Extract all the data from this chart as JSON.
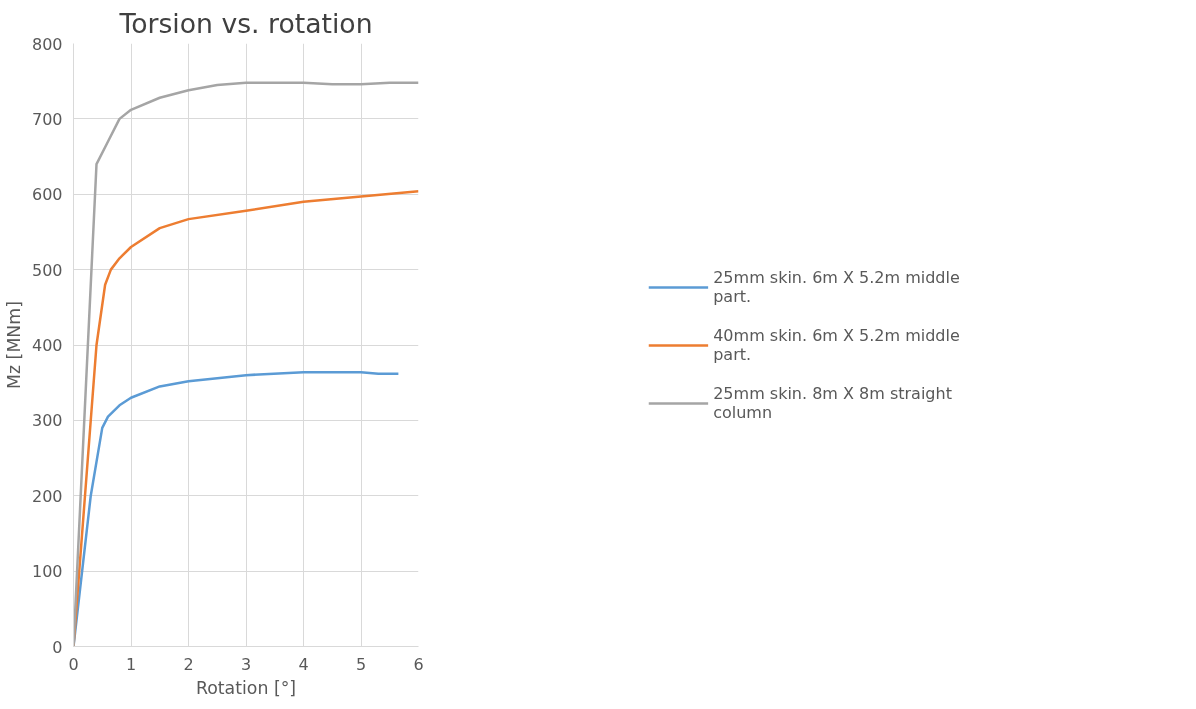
{
  "chart_data": {
    "type": "line",
    "title": "Torsion vs. rotation",
    "xlabel": "Rotation [°]",
    "ylabel": "Mz [MNm]",
    "xlim": [
      0,
      6
    ],
    "xticks": [
      0,
      1,
      2,
      3,
      4,
      5,
      6
    ],
    "ylim": [
      0,
      800
    ],
    "yticks": [
      0,
      100,
      200,
      300,
      400,
      500,
      600,
      700,
      800
    ],
    "grid": true,
    "legend": "right",
    "marker": "none",
    "line_style": "solid",
    "series": [
      {
        "name": "25mm skin. 6m X 5.2m middle part.",
        "color": "#5b9bd5",
        "x": [
          0,
          0.3,
          0.5,
          0.6,
          0.8,
          1,
          1.5,
          2,
          3,
          4,
          5,
          5.3,
          5.65
        ],
        "values": [
          0,
          200,
          290,
          305,
          320,
          330,
          345,
          352,
          360,
          364,
          364,
          362,
          362
        ]
      },
      {
        "name": "40mm skin. 6m X 5.2m middle part.",
        "color": "#ed7d31",
        "x": [
          0,
          0.4,
          0.55,
          0.65,
          0.8,
          1,
          1.5,
          2,
          3,
          4,
          5,
          6
        ],
        "values": [
          0,
          400,
          480,
          500,
          515,
          530,
          555,
          567,
          578,
          590,
          597,
          604
        ]
      },
      {
        "name": "25mm skin. 8m X 8m straight column",
        "color": "#a5a5a5",
        "x": [
          0,
          0.4,
          0.6,
          0.8,
          1,
          1.5,
          2,
          2.5,
          3,
          4,
          4.5,
          5,
          5.5,
          6
        ],
        "values": [
          0,
          640,
          670,
          700,
          712,
          728,
          738,
          745,
          748,
          748,
          746,
          746,
          748,
          748
        ]
      }
    ]
  }
}
